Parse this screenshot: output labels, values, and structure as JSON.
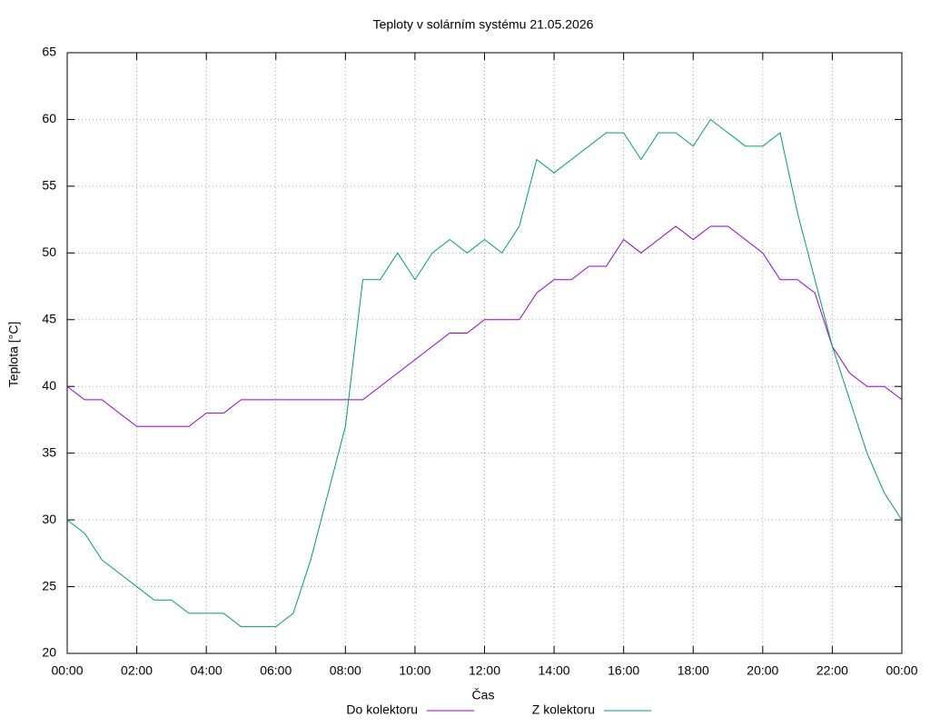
{
  "chart_data": {
    "type": "line",
    "title": "Teploty v solárním systému 21.05.2026",
    "x_label": "Čas",
    "y_label": "Teplota [°C]",
    "x": [
      0,
      0.5,
      1,
      1.5,
      2,
      2.5,
      3,
      3.5,
      4,
      4.5,
      5,
      5.5,
      6,
      6.5,
      7,
      7.5,
      8,
      8.5,
      9,
      9.5,
      10,
      10.5,
      11,
      11.5,
      12,
      12.5,
      13,
      13.5,
      14,
      14.5,
      15,
      15.5,
      16,
      16.5,
      17,
      17.5,
      18,
      18.5,
      19,
      19.5,
      20,
      20.5,
      21,
      21.5,
      22,
      22.5,
      23,
      23.5,
      24
    ],
    "series": [
      {
        "name": "Do kolektoru",
        "color": "#9400d3",
        "values": [
          40,
          39,
          39,
          38,
          37,
          37,
          37,
          37,
          38,
          38,
          39,
          39,
          39,
          39,
          39,
          39,
          39,
          39,
          40,
          41,
          42,
          43,
          44,
          44,
          45,
          45,
          45,
          47,
          48,
          48,
          49,
          49,
          51,
          50,
          51,
          52,
          51,
          52,
          52,
          51,
          50,
          48,
          48,
          47,
          43,
          41,
          40,
          40,
          39
        ]
      },
      {
        "name": "Z kolektoru",
        "color": "#009e73",
        "values": [
          30,
          29,
          27,
          26,
          25,
          24,
          24,
          23,
          23,
          23,
          22,
          22,
          22,
          23,
          27,
          32,
          37,
          48,
          48,
          50,
          48,
          50,
          51,
          50,
          51,
          50,
          52,
          57,
          56,
          57,
          58,
          59,
          59,
          57,
          59,
          59,
          58,
          60,
          59,
          58,
          58,
          59,
          53,
          48,
          43,
          39,
          35,
          32,
          30
        ]
      }
    ],
    "xlim": [
      0,
      24
    ],
    "xticks": [
      {
        "value": 0,
        "label": "00:00"
      },
      {
        "value": 2,
        "label": "02:00"
      },
      {
        "value": 4,
        "label": "04:00"
      },
      {
        "value": 6,
        "label": "06:00"
      },
      {
        "value": 8,
        "label": "08:00"
      },
      {
        "value": 10,
        "label": "10:00"
      },
      {
        "value": 12,
        "label": "12:00"
      },
      {
        "value": 14,
        "label": "14:00"
      },
      {
        "value": 16,
        "label": "16:00"
      },
      {
        "value": 18,
        "label": "18:00"
      },
      {
        "value": 20,
        "label": "20:00"
      },
      {
        "value": 22,
        "label": "22:00"
      },
      {
        "value": 24,
        "label": "00:00"
      }
    ],
    "ylim": [
      20,
      65
    ],
    "yticks": [
      20,
      25,
      30,
      35,
      40,
      45,
      50,
      55,
      60,
      65
    ],
    "grid": true,
    "legend": "bottom"
  }
}
